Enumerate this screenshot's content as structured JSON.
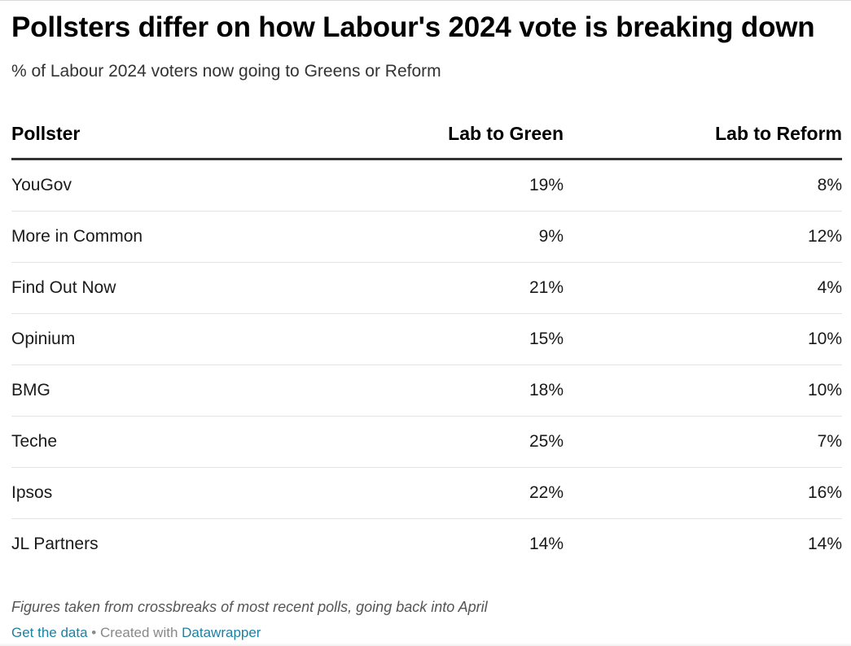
{
  "title": "Pollsters differ on how Labour's 2024 vote is breaking down",
  "subtitle": "% of Labour 2024 voters now going to Greens or Reform",
  "chart_data": {
    "type": "table",
    "columns": [
      "Pollster",
      "Lab to Green",
      "Lab to Reform"
    ],
    "rows": [
      [
        "YouGov",
        "19%",
        "8%"
      ],
      [
        "More in Common",
        "9%",
        "12%"
      ],
      [
        "Find Out Now",
        "21%",
        "4%"
      ],
      [
        "Opinium",
        "15%",
        "10%"
      ],
      [
        "BMG",
        "18%",
        "10%"
      ],
      [
        "Teche",
        "25%",
        "7%"
      ],
      [
        "Ipsos",
        "22%",
        "16%"
      ],
      [
        "JL Partners",
        "14%",
        "14%"
      ]
    ]
  },
  "footer": {
    "note": "Figures taken from crossbreaks of most recent polls, going back into April",
    "get_data_label": "Get the data",
    "separator": " • Created with ",
    "tool_label": "Datawrapper"
  },
  "colors": {
    "link": "#1d81a2",
    "header_rule": "#333333",
    "row_rule": "#e3e3e3"
  }
}
